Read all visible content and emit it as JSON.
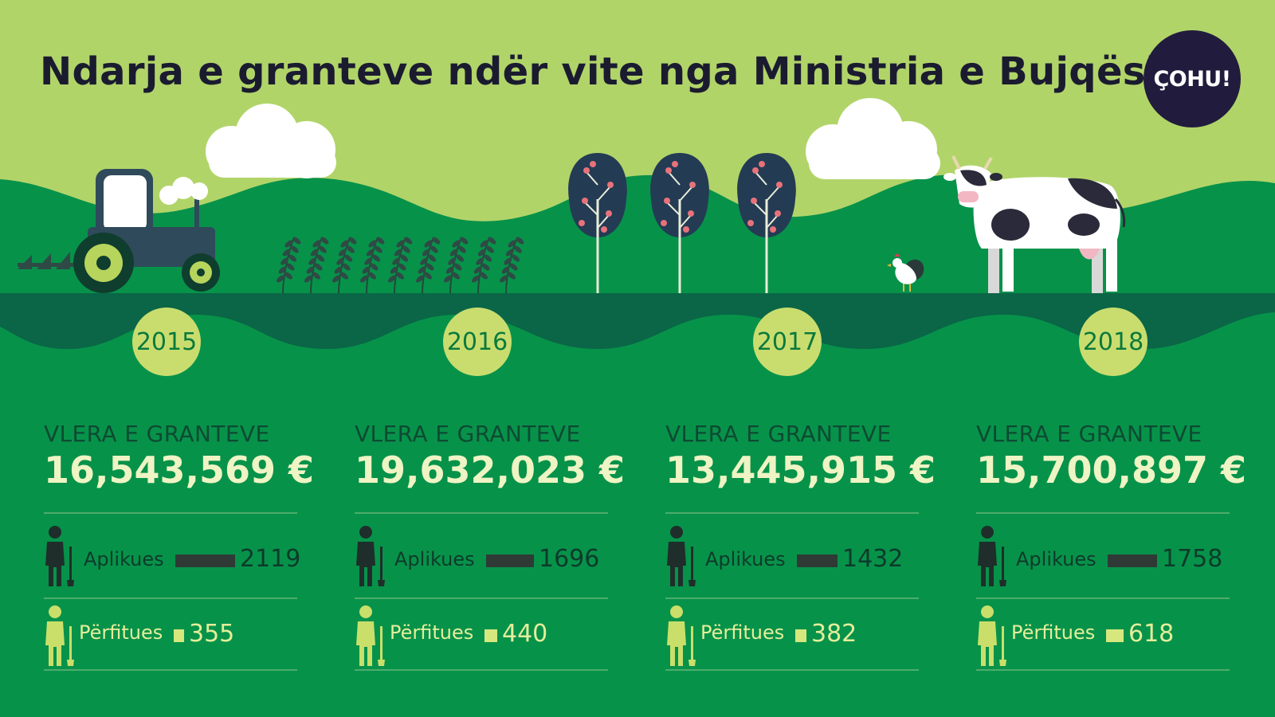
{
  "title": "Ndarja e granteve ndër vite nga Ministria e Bujqësisë",
  "logo": "ÇOHU!",
  "colors": {
    "sky": "#b1d469",
    "hills": "#07924a",
    "strip": "#0a6646",
    "badge": "#c9dd6f",
    "bar_applicants": "#2f3a36",
    "bar_beneficiaries": "#d6e77e"
  },
  "years": [
    {
      "year": "2015",
      "label": "VLERA E GRANTEVE",
      "value": "16,543,569 €",
      "applicants_label": "Aplikues",
      "applicants": "2119",
      "applicants_count": 2119,
      "beneficiaries_label": "Përfitues",
      "beneficiaries": "355",
      "beneficiaries_count": 355
    },
    {
      "year": "2016",
      "label": "VLERA E GRANTEVE",
      "value": "19,632,023 €",
      "applicants_label": "Aplikues",
      "applicants": "1696",
      "applicants_count": 1696,
      "beneficiaries_label": "Përfitues",
      "beneficiaries": "440",
      "beneficiaries_count": 440
    },
    {
      "year": "2017",
      "label": "VLERA E GRANTEVE",
      "value": "13,445,915 €",
      "applicants_label": "Aplikues",
      "applicants": "1432",
      "applicants_count": 1432,
      "beneficiaries_label": "Përfitues",
      "beneficiaries": "382",
      "beneficiaries_count": 382
    },
    {
      "year": "2018",
      "label": "VLERA E GRANTEVE",
      "value": "15,700,897 €",
      "applicants_label": "Aplikues",
      "applicants": "1758",
      "applicants_count": 1758,
      "beneficiaries_label": "Përfitues",
      "beneficiaries": "618",
      "beneficiaries_count": 618
    }
  ]
}
